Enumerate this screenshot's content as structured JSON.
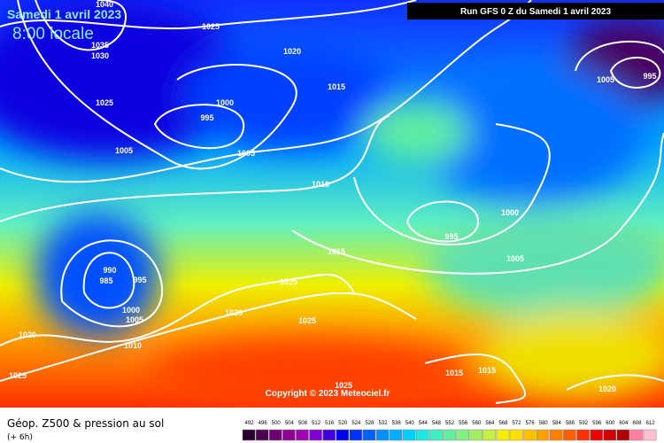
{
  "header": {
    "date": "Samedi 1 avril 2023",
    "time": "8:00 locale",
    "run": "Run GFS 0 Z du Samedi 1 avril 2023"
  },
  "map": {
    "isobar_labels": [
      "1040",
      "1025",
      "1035",
      "1030",
      "1020",
      "1015",
      "1025",
      "1000",
      "995",
      "1005",
      "1005",
      "1010",
      "1000",
      "995",
      "1015",
      "1005",
      "990",
      "985",
      "995",
      "1025",
      "1000",
      "1005",
      "1020",
      "1025",
      "1020",
      "1010",
      "1025",
      "1015",
      "1015",
      "1025",
      "1020",
      "1005",
      "995"
    ],
    "copyright": "Copyright © 2023 Meteociel.fr"
  },
  "legend": {
    "title": "Géop. Z500 & pression au sol",
    "step": "(+ 6h)",
    "scale": [
      492,
      496,
      500,
      504,
      508,
      512,
      516,
      520,
      524,
      528,
      532,
      536,
      540,
      544,
      548,
      552,
      556,
      560,
      564,
      568,
      572,
      576,
      580,
      584,
      588,
      592,
      596,
      600,
      604,
      608,
      612
    ],
    "colors": [
      "#2a0030",
      "#4b0050",
      "#6e0070",
      "#8d0090",
      "#a000b0",
      "#8000d0",
      "#4000e0",
      "#0000f0",
      "#0030ff",
      "#0060ff",
      "#0090ff",
      "#00b0ff",
      "#00d0ff",
      "#20e8e0",
      "#40f0c0",
      "#60f0a0",
      "#80f080",
      "#a0f060",
      "#c8f040",
      "#f0f000",
      "#ffe000",
      "#ffc000",
      "#ffa000",
      "#ff8000",
      "#ff6000",
      "#ff3000",
      "#f00000",
      "#d00000",
      "#b00000",
      "#ff80a0",
      "#ffc0d0"
    ]
  }
}
